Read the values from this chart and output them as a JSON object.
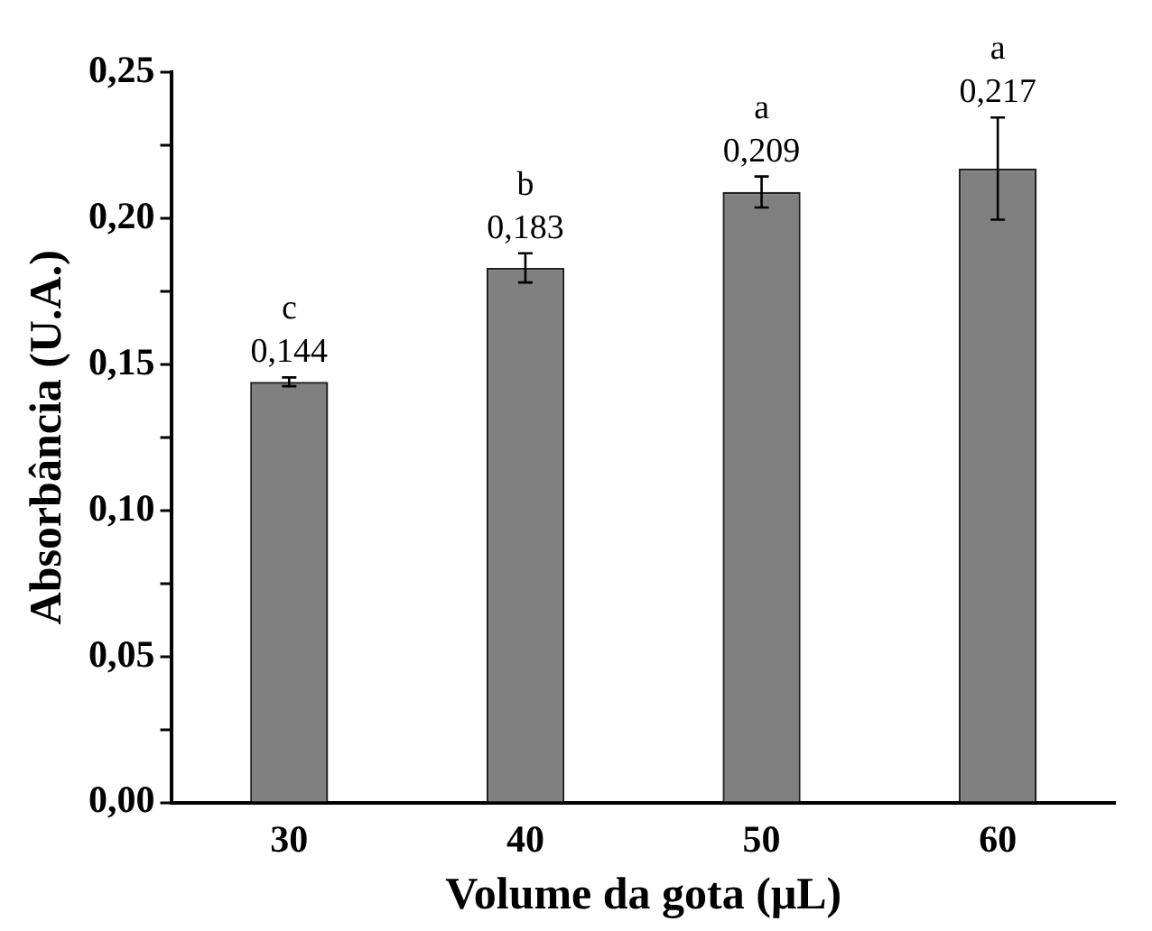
{
  "chart_data": {
    "type": "bar",
    "xlabel": "Volume da gota (μL)",
    "ylabel": "Absorbância (U.A.)",
    "categories": [
      "30",
      "40",
      "50",
      "60"
    ],
    "values": [
      0.144,
      0.183,
      0.209,
      0.217
    ],
    "errors": [
      0.0015,
      0.005,
      0.0053,
      0.0175
    ],
    "value_labels": [
      "0,144",
      "0,183",
      "0,209",
      "0,217"
    ],
    "color": "#808080",
    "ylim": [
      0,
      0.25
    ],
    "yticks": [
      {
        "value": 0,
        "label": "0,00"
      },
      {
        "value": 0.025,
        "label": null
      },
      {
        "value": 0.05,
        "label": "0,05"
      },
      {
        "value": 0.075,
        "label": null
      },
      {
        "value": 0.1,
        "label": "0,10"
      },
      {
        "value": 0.125,
        "label": null
      },
      {
        "value": 0.15,
        "label": "0,15"
      },
      {
        "value": 0.175,
        "label": null
      },
      {
        "value": 0.2,
        "label": "0,20"
      },
      {
        "value": 0.225,
        "label": null
      },
      {
        "value": 0.25,
        "label": "0,25"
      }
    ],
    "annotations": [
      {
        "text": "c",
        "x": "30",
        "y": 0.144
      },
      {
        "text": "b",
        "x": "40",
        "y": 0.183
      },
      {
        "text": "a",
        "x": "50",
        "y": 0.209
      },
      {
        "text": "a",
        "x": "60",
        "y": 0.217
      }
    ],
    "grid": false,
    "legend": false
  }
}
